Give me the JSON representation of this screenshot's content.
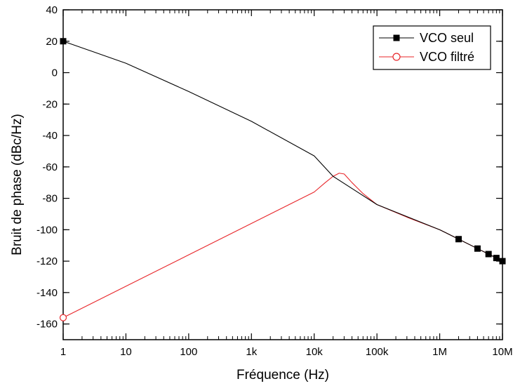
{
  "chart_data": {
    "type": "line",
    "xlabel": "Fréquence (Hz)",
    "ylabel": "Bruit de phase (dBc/Hz)",
    "x_scale": "log",
    "xlim": [
      1,
      10000000
    ],
    "ylim": [
      -170,
      40
    ],
    "x_ticks": [
      {
        "value": 1,
        "label": "1"
      },
      {
        "value": 10,
        "label": "10"
      },
      {
        "value": 100,
        "label": "100"
      },
      {
        "value": 1000,
        "label": "1k"
      },
      {
        "value": 10000,
        "label": "10k"
      },
      {
        "value": 100000,
        "label": "100k"
      },
      {
        "value": 1000000,
        "label": "1M"
      },
      {
        "value": 10000000,
        "label": "10M"
      }
    ],
    "y_ticks": [
      {
        "value": 40,
        "label": "40"
      },
      {
        "value": 20,
        "label": "20"
      },
      {
        "value": 0,
        "label": "0"
      },
      {
        "value": -20,
        "label": "-20"
      },
      {
        "value": -40,
        "label": "-40"
      },
      {
        "value": -60,
        "label": "-60"
      },
      {
        "value": -80,
        "label": "-80"
      },
      {
        "value": -100,
        "label": "-100"
      },
      {
        "value": -120,
        "label": "-120"
      },
      {
        "value": -140,
        "label": "-140"
      },
      {
        "value": -160,
        "label": "-160"
      }
    ],
    "grid": false,
    "legend_position": "top-right",
    "series": [
      {
        "name": "VCO seul",
        "color": "#000000",
        "marker": "filled-square",
        "x": [
          1,
          10,
          100,
          1000,
          10000,
          20000,
          100000,
          1000000,
          2000000,
          4000000,
          6000000,
          8000000,
          10000000
        ],
        "y": [
          20,
          6,
          -12,
          -31,
          -53,
          -66,
          -84,
          -100,
          -106,
          -112,
          -115.5,
          -118,
          -120
        ],
        "markers": [
          {
            "x": 1,
            "y": 20
          },
          {
            "x": 2000000,
            "y": -106
          },
          {
            "x": 4000000,
            "y": -112
          },
          {
            "x": 6000000,
            "y": -115.5
          },
          {
            "x": 8000000,
            "y": -118
          },
          {
            "x": 10000000,
            "y": -120
          }
        ]
      },
      {
        "name": "VCO filtré",
        "color": "#e8262a",
        "marker": "open-circle",
        "x": [
          1,
          10,
          100,
          1000,
          10000,
          15000,
          20000,
          25000,
          30000,
          40000,
          60000,
          100000,
          300000,
          1000000,
          2000000,
          4000000,
          6000000,
          8000000,
          10000000
        ],
        "y": [
          -156,
          -136,
          -116,
          -96,
          -76,
          -70,
          -66,
          -64,
          -64.5,
          -70,
          -77,
          -84,
          -92,
          -100,
          -106,
          -112,
          -115.5,
          -118,
          -120
        ],
        "markers": [
          {
            "x": 1,
            "y": -156
          }
        ]
      }
    ]
  }
}
